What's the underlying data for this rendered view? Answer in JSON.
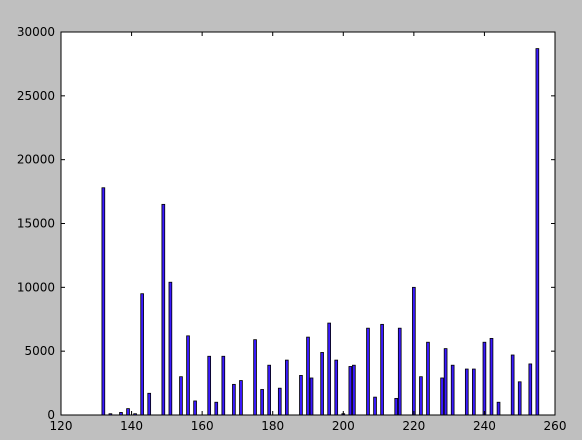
{
  "chart_data": {
    "type": "bar",
    "title": "",
    "xlabel": "",
    "ylabel": "",
    "xlim": [
      120,
      260
    ],
    "ylim": [
      0,
      30000
    ],
    "xticks": [
      120,
      140,
      160,
      180,
      200,
      220,
      240,
      260
    ],
    "yticks": [
      0,
      5000,
      10000,
      15000,
      20000,
      25000,
      30000
    ],
    "grid": false,
    "bar_color": "#3a1aff",
    "bar_edge_color": "#000000",
    "bar_width": 0.8,
    "x": [
      132,
      134,
      137,
      139,
      141,
      143,
      145,
      149,
      151,
      154,
      156,
      158,
      162,
      164,
      166,
      169,
      171,
      175,
      177,
      179,
      182,
      184,
      188,
      190,
      191,
      194,
      196,
      198,
      200,
      202,
      203,
      207,
      209,
      211,
      215,
      216,
      220,
      222,
      224,
      228,
      229,
      231,
      235,
      237,
      240,
      242,
      244,
      248,
      250,
      253,
      255
    ],
    "values": [
      17800,
      100,
      200,
      500,
      100,
      9500,
      1700,
      16500,
      10400,
      3000,
      6200,
      1100,
      4600,
      1000,
      4600,
      2400,
      2700,
      5900,
      2000,
      3900,
      2100,
      4300,
      3100,
      6100,
      2900,
      4900,
      7200,
      4300,
      100,
      3800,
      3900,
      6800,
      1400,
      7100,
      1300,
      6800,
      10000,
      3000,
      5700,
      2900,
      5200,
      3900,
      3600,
      3600,
      5700,
      6000,
      1000,
      4700,
      2600,
      4000,
      28700
    ]
  }
}
